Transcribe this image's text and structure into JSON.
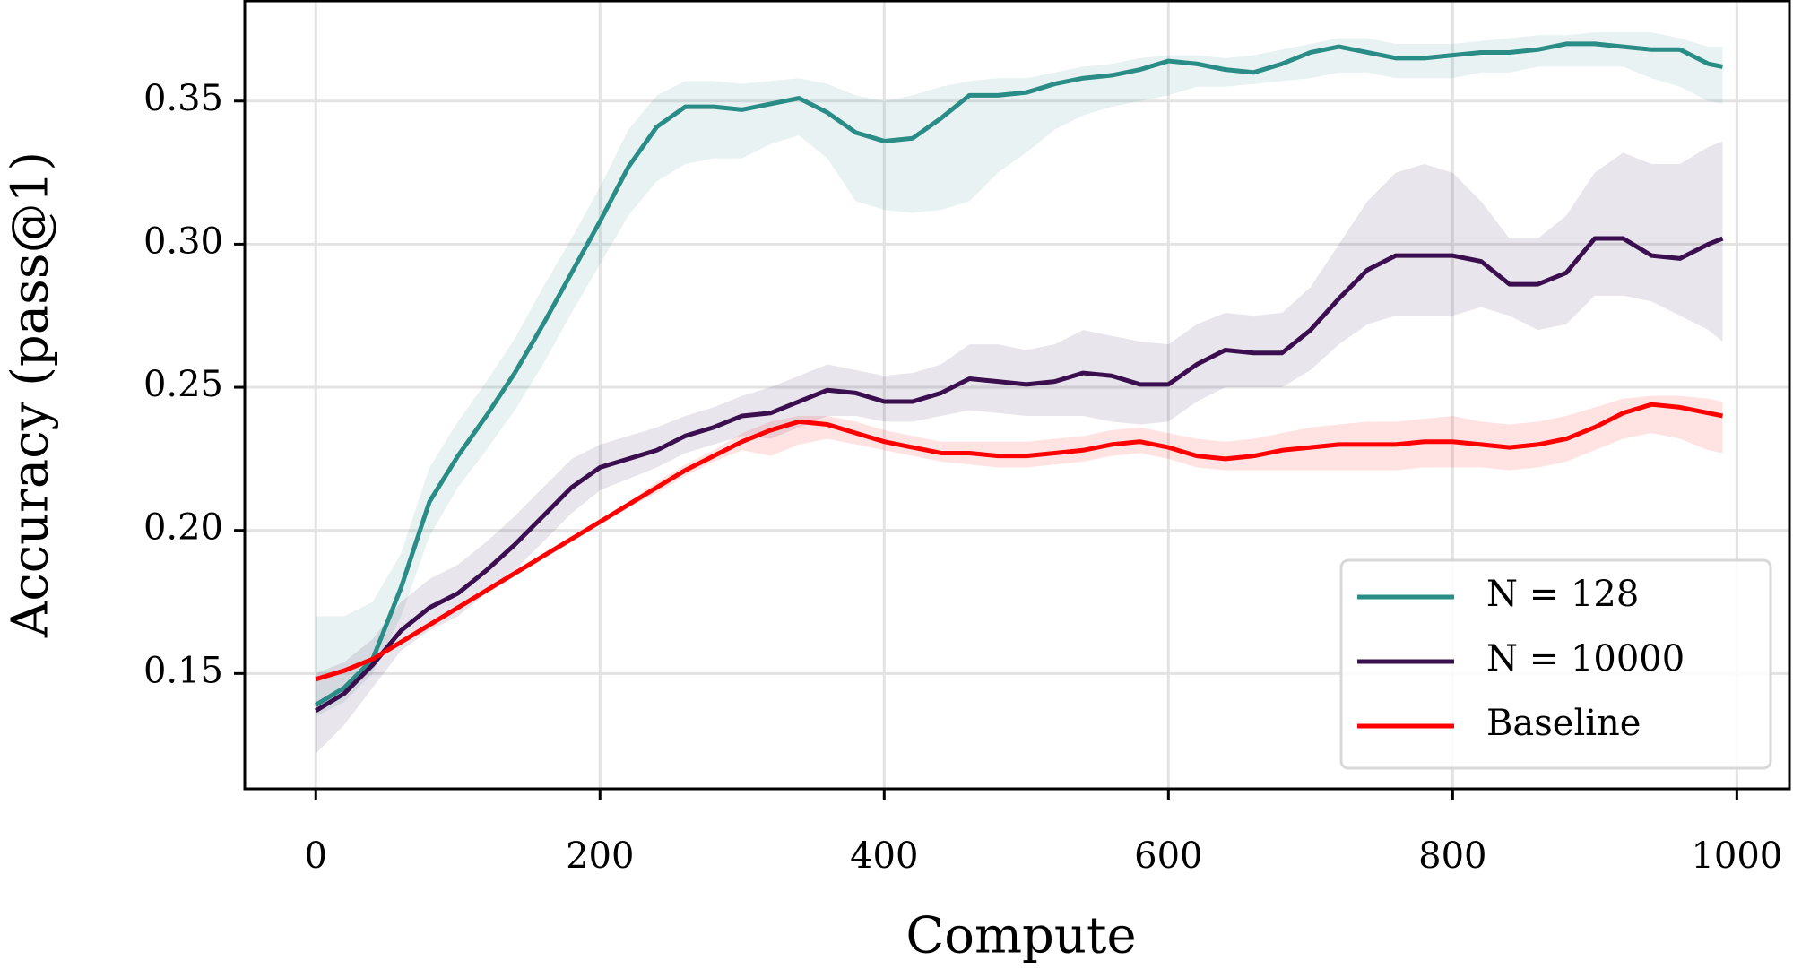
{
  "chart_data": {
    "type": "line",
    "x_label": "Compute",
    "y_label": "Accuracy (pass@1)",
    "x": [
      0,
      20,
      40,
      60,
      80,
      100,
      120,
      140,
      160,
      180,
      200,
      220,
      240,
      260,
      280,
      300,
      320,
      340,
      360,
      380,
      400,
      420,
      440,
      460,
      480,
      500,
      520,
      540,
      560,
      580,
      600,
      620,
      640,
      660,
      680,
      700,
      720,
      740,
      760,
      780,
      800,
      820,
      840,
      860,
      880,
      900,
      920,
      940,
      960,
      980,
      990
    ],
    "series": [
      {
        "name": "N = 128",
        "color": "#2a8c87",
        "values": [
          0.139,
          0.145,
          0.155,
          0.18,
          0.21,
          0.226,
          0.24,
          0.255,
          0.272,
          0.29,
          0.308,
          0.327,
          0.341,
          0.348,
          0.348,
          0.347,
          0.349,
          0.351,
          0.346,
          0.339,
          0.336,
          0.337,
          0.344,
          0.352,
          0.352,
          0.353,
          0.356,
          0.358,
          0.359,
          0.361,
          0.364,
          0.363,
          0.361,
          0.36,
          0.363,
          0.367,
          0.369,
          0.367,
          0.365,
          0.365,
          0.366,
          0.367,
          0.367,
          0.368,
          0.37,
          0.37,
          0.369,
          0.368,
          0.368,
          0.363,
          0.362
        ],
        "lower": [
          0.135,
          0.14,
          0.15,
          0.17,
          0.198,
          0.215,
          0.228,
          0.242,
          0.258,
          0.276,
          0.293,
          0.31,
          0.322,
          0.328,
          0.33,
          0.33,
          0.335,
          0.338,
          0.33,
          0.315,
          0.312,
          0.311,
          0.312,
          0.315,
          0.325,
          0.332,
          0.34,
          0.345,
          0.348,
          0.35,
          0.352,
          0.355,
          0.355,
          0.356,
          0.357,
          0.358,
          0.36,
          0.36,
          0.358,
          0.358,
          0.358,
          0.36,
          0.36,
          0.362,
          0.362,
          0.362,
          0.362,
          0.358,
          0.355,
          0.35,
          0.349
        ],
        "upper": [
          0.17,
          0.17,
          0.175,
          0.192,
          0.222,
          0.238,
          0.252,
          0.267,
          0.285,
          0.302,
          0.32,
          0.34,
          0.352,
          0.357,
          0.357,
          0.356,
          0.357,
          0.358,
          0.356,
          0.352,
          0.35,
          0.352,
          0.355,
          0.357,
          0.358,
          0.358,
          0.36,
          0.362,
          0.363,
          0.365,
          0.366,
          0.366,
          0.365,
          0.366,
          0.368,
          0.37,
          0.372,
          0.372,
          0.37,
          0.37,
          0.37,
          0.371,
          0.372,
          0.373,
          0.373,
          0.374,
          0.374,
          0.374,
          0.372,
          0.369,
          0.369
        ]
      },
      {
        "name": "N = 10000",
        "color": "#3b0f4f",
        "values": [
          0.137,
          0.143,
          0.153,
          0.165,
          0.173,
          0.178,
          0.186,
          0.195,
          0.205,
          0.215,
          0.222,
          0.225,
          0.228,
          0.233,
          0.236,
          0.24,
          0.241,
          0.245,
          0.249,
          0.248,
          0.245,
          0.245,
          0.248,
          0.253,
          0.252,
          0.251,
          0.252,
          0.255,
          0.254,
          0.251,
          0.251,
          0.258,
          0.263,
          0.262,
          0.262,
          0.27,
          0.281,
          0.291,
          0.296,
          0.296,
          0.296,
          0.294,
          0.286,
          0.286,
          0.29,
          0.302,
          0.302,
          0.296,
          0.295,
          0.3,
          0.302
        ],
        "lower": [
          0.122,
          0.132,
          0.145,
          0.158,
          0.165,
          0.17,
          0.178,
          0.186,
          0.196,
          0.206,
          0.214,
          0.218,
          0.222,
          0.227,
          0.23,
          0.233,
          0.232,
          0.236,
          0.24,
          0.24,
          0.238,
          0.238,
          0.24,
          0.242,
          0.241,
          0.24,
          0.24,
          0.24,
          0.238,
          0.237,
          0.238,
          0.245,
          0.25,
          0.25,
          0.25,
          0.256,
          0.265,
          0.272,
          0.275,
          0.275,
          0.275,
          0.278,
          0.275,
          0.27,
          0.272,
          0.282,
          0.282,
          0.28,
          0.275,
          0.27,
          0.266
        ],
        "upper": [
          0.15,
          0.154,
          0.162,
          0.175,
          0.183,
          0.188,
          0.196,
          0.205,
          0.215,
          0.225,
          0.23,
          0.233,
          0.236,
          0.24,
          0.243,
          0.247,
          0.25,
          0.254,
          0.258,
          0.256,
          0.254,
          0.255,
          0.258,
          0.265,
          0.265,
          0.263,
          0.265,
          0.27,
          0.268,
          0.266,
          0.265,
          0.272,
          0.276,
          0.275,
          0.276,
          0.285,
          0.3,
          0.315,
          0.325,
          0.328,
          0.325,
          0.315,
          0.302,
          0.302,
          0.31,
          0.325,
          0.332,
          0.328,
          0.328,
          0.334,
          0.336
        ]
      },
      {
        "name": "Baseline",
        "color": "#ff0000",
        "values": [
          0.148,
          0.151,
          0.155,
          0.161,
          0.167,
          0.173,
          0.179,
          0.185,
          0.191,
          0.197,
          0.203,
          0.209,
          0.215,
          0.221,
          0.226,
          0.231,
          0.235,
          0.238,
          0.237,
          0.234,
          0.231,
          0.229,
          0.227,
          0.227,
          0.226,
          0.226,
          0.227,
          0.228,
          0.23,
          0.231,
          0.229,
          0.226,
          0.225,
          0.226,
          0.228,
          0.229,
          0.23,
          0.23,
          0.23,
          0.231,
          0.231,
          0.23,
          0.229,
          0.23,
          0.232,
          0.236,
          0.241,
          0.244,
          0.243,
          0.241,
          0.24
        ],
        "lower": [
          0.147,
          0.15,
          0.154,
          0.16,
          0.166,
          0.172,
          0.178,
          0.184,
          0.19,
          0.196,
          0.202,
          0.208,
          0.213,
          0.219,
          0.224,
          0.228,
          0.226,
          0.23,
          0.232,
          0.23,
          0.228,
          0.226,
          0.224,
          0.223,
          0.222,
          0.222,
          0.223,
          0.224,
          0.226,
          0.227,
          0.225,
          0.222,
          0.221,
          0.221,
          0.221,
          0.221,
          0.221,
          0.221,
          0.221,
          0.222,
          0.222,
          0.222,
          0.221,
          0.222,
          0.224,
          0.228,
          0.232,
          0.234,
          0.232,
          0.228,
          0.227
        ],
        "upper": [
          0.149,
          0.152,
          0.156,
          0.162,
          0.168,
          0.174,
          0.18,
          0.186,
          0.192,
          0.198,
          0.204,
          0.21,
          0.217,
          0.223,
          0.228,
          0.234,
          0.238,
          0.24,
          0.24,
          0.238,
          0.235,
          0.233,
          0.231,
          0.231,
          0.231,
          0.231,
          0.232,
          0.233,
          0.235,
          0.236,
          0.234,
          0.232,
          0.231,
          0.232,
          0.234,
          0.236,
          0.237,
          0.238,
          0.238,
          0.239,
          0.24,
          0.238,
          0.237,
          0.238,
          0.24,
          0.243,
          0.246,
          0.247,
          0.247,
          0.246,
          0.245
        ]
      }
    ],
    "xlim": [
      -50,
      1037
    ],
    "ylim": [
      0.1097,
      0.385
    ],
    "xticks": [
      0,
      200,
      400,
      600,
      800,
      1000
    ],
    "yticks": [
      0.15,
      {
        "value": 0.2,
        "label": "0.20"
      },
      0.25,
      {
        "value": 0.3,
        "label": "0.30"
      },
      0.35
    ],
    "grid": true,
    "legend": "lower right"
  }
}
